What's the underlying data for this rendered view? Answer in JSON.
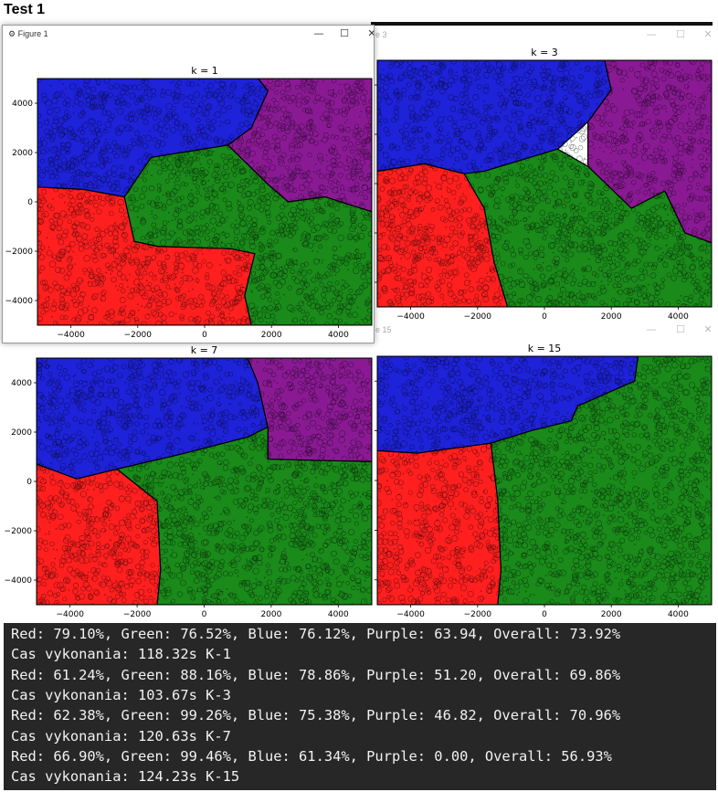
{
  "heading": "Test 1",
  "windows": [
    {
      "title": "Figure 1",
      "controls": [
        "—",
        "☐",
        "✕"
      ],
      "plot_title": "k = 1"
    },
    {
      "title": "e 3",
      "controls": [
        "—",
        "☐",
        "✕"
      ],
      "plot_title": "k = 3"
    },
    {
      "title": "",
      "controls": [],
      "plot_title": "k = 7"
    },
    {
      "title": "e 15",
      "controls": [
        "—",
        "☐",
        "✕"
      ],
      "plot_title": "k = 15"
    }
  ],
  "toolbar": {
    "icons": [
      "home-icon",
      "back-arrow-icon",
      "forward-arrow-icon",
      "pan-move-icon",
      "zoom-magnifier-icon",
      "configure-subplots-icon",
      "save-floppy-icon"
    ],
    "glyphs": [
      "⌂",
      "←",
      "→",
      "✛",
      "⌕",
      "☰",
      "▣"
    ]
  },
  "chart_data": {
    "type": "scatter",
    "xticks": [
      "−4000",
      "−2000",
      "0",
      "2000",
      "4000"
    ],
    "yticks": [
      "4000",
      "2000",
      "0",
      "−2000",
      "−4000"
    ],
    "xlim": [
      -5000,
      5000
    ],
    "ylim": [
      -5000,
      5000
    ],
    "class_colors": {
      "red": "#ff1f1f",
      "green": "#1a8a1a",
      "blue": "#1e22d8",
      "purple": "#8a1a94"
    },
    "panels": [
      {
        "title": "k = 1",
        "regions": [
          {
            "color": "blue",
            "polygon": [
              [
                -5000,
                5000
              ],
              [
                1600,
                5000
              ],
              [
                1900,
                4500
              ],
              [
                1400,
                3000
              ],
              [
                700,
                2300
              ],
              [
                -1600,
                1800
              ],
              [
                -2400,
                200
              ],
              [
                -3600,
                500
              ],
              [
                -5000,
                600
              ]
            ]
          },
          {
            "color": "purple",
            "polygon": [
              [
                1600,
                5000
              ],
              [
                5000,
                5000
              ],
              [
                5000,
                -400
              ],
              [
                3600,
                200
              ],
              [
                2500,
                0
              ],
              [
                1900,
                700
              ],
              [
                700,
                2300
              ],
              [
                1400,
                3000
              ],
              [
                1900,
                4500
              ]
            ]
          },
          {
            "color": "red",
            "polygon": [
              [
                -5000,
                600
              ],
              [
                -3600,
                500
              ],
              [
                -2400,
                200
              ],
              [
                -2100,
                -1600
              ],
              [
                -1400,
                -1800
              ],
              [
                800,
                -1900
              ],
              [
                1500,
                -2100
              ],
              [
                1200,
                -3800
              ],
              [
                1400,
                -5000
              ],
              [
                -5000,
                -5000
              ]
            ]
          },
          {
            "color": "green",
            "polygon": [
              [
                -2400,
                200
              ],
              [
                -1600,
                1800
              ],
              [
                700,
                2300
              ],
              [
                1900,
                700
              ],
              [
                2500,
                0
              ],
              [
                3600,
                200
              ],
              [
                5000,
                -400
              ],
              [
                5000,
                -5000
              ],
              [
                1400,
                -5000
              ],
              [
                1200,
                -3800
              ],
              [
                1500,
                -2100
              ],
              [
                800,
                -1900
              ],
              [
                -1400,
                -1800
              ],
              [
                -2100,
                -1600
              ]
            ]
          }
        ]
      },
      {
        "title": "k = 3",
        "regions": [
          {
            "color": "blue",
            "polygon": [
              [
                -5000,
                5000
              ],
              [
                1800,
                5000
              ],
              [
                2000,
                3800
              ],
              [
                1300,
                2500
              ],
              [
                400,
                1400
              ],
              [
                -1800,
                500
              ],
              [
                -2400,
                400
              ],
              [
                -3600,
                800
              ],
              [
                -5000,
                500
              ]
            ]
          },
          {
            "color": "purple",
            "polygon": [
              [
                1800,
                5000
              ],
              [
                5000,
                5000
              ],
              [
                5000,
                -2400
              ],
              [
                4200,
                -2000
              ],
              [
                3600,
                -300
              ],
              [
                2600,
                -1000
              ],
              [
                1300,
                700
              ],
              [
                1300,
                2500
              ],
              [
                2000,
                3800
              ]
            ]
          },
          {
            "color": "red",
            "polygon": [
              [
                -5000,
                500
              ],
              [
                -3600,
                800
              ],
              [
                -2400,
                400
              ],
              [
                -1800,
                -1000
              ],
              [
                -1500,
                -3200
              ],
              [
                -1100,
                -5000
              ],
              [
                -5000,
                -5000
              ]
            ]
          },
          {
            "color": "green",
            "polygon": [
              [
                -2400,
                400
              ],
              [
                -1800,
                500
              ],
              [
                400,
                1400
              ],
              [
                1300,
                700
              ],
              [
                2600,
                -1000
              ],
              [
                3600,
                -300
              ],
              [
                4200,
                -2000
              ],
              [
                5000,
                -2400
              ],
              [
                5000,
                -5000
              ],
              [
                -1100,
                -5000
              ],
              [
                -1500,
                -3200
              ],
              [
                -1800,
                -1000
              ]
            ]
          }
        ]
      },
      {
        "title": "k = 7",
        "regions": [
          {
            "color": "blue",
            "polygon": [
              [
                -5000,
                5000
              ],
              [
                1300,
                5000
              ],
              [
                1600,
                4000
              ],
              [
                1900,
                2200
              ],
              [
                1300,
                1800
              ],
              [
                -700,
                1100
              ],
              [
                -2600,
                500
              ],
              [
                -3800,
                100
              ],
              [
                -5000,
                700
              ]
            ]
          },
          {
            "color": "purple",
            "polygon": [
              [
                1300,
                5000
              ],
              [
                5000,
                5000
              ],
              [
                5000,
                800
              ],
              [
                1900,
                900
              ],
              [
                1900,
                2200
              ],
              [
                1600,
                4000
              ]
            ]
          },
          {
            "color": "red",
            "polygon": [
              [
                -5000,
                700
              ],
              [
                -3800,
                100
              ],
              [
                -2600,
                500
              ],
              [
                -1400,
                -800
              ],
              [
                -1300,
                -3600
              ],
              [
                -1400,
                -5000
              ],
              [
                -5000,
                -5000
              ]
            ]
          },
          {
            "color": "green",
            "polygon": [
              [
                -2600,
                500
              ],
              [
                -700,
                1100
              ],
              [
                1300,
                1800
              ],
              [
                1900,
                2200
              ],
              [
                1900,
                900
              ],
              [
                5000,
                800
              ],
              [
                5000,
                -5000
              ],
              [
                -1400,
                -5000
              ],
              [
                -1300,
                -3600
              ],
              [
                -1400,
                -800
              ]
            ]
          }
        ]
      },
      {
        "title": "k = 15",
        "regions": [
          {
            "color": "blue",
            "polygon": [
              [
                -5000,
                5000
              ],
              [
                2800,
                5000
              ],
              [
                2700,
                4000
              ],
              [
                1000,
                3000
              ],
              [
                800,
                2400
              ],
              [
                -400,
                2000
              ],
              [
                -1600,
                1500
              ],
              [
                -3800,
                1100
              ],
              [
                -5000,
                1200
              ]
            ]
          },
          {
            "color": "green",
            "polygon": [
              [
                2800,
                5000
              ],
              [
                5000,
                5000
              ],
              [
                5000,
                -5000
              ],
              [
                -1400,
                -5000
              ],
              [
                -1300,
                -3600
              ],
              [
                -1400,
                -800
              ],
              [
                -1600,
                1500
              ],
              [
                -400,
                2000
              ],
              [
                800,
                2400
              ],
              [
                1000,
                3000
              ],
              [
                2700,
                4000
              ]
            ]
          },
          {
            "color": "red",
            "polygon": [
              [
                -5000,
                1200
              ],
              [
                -3800,
                1100
              ],
              [
                -1600,
                1500
              ],
              [
                -1400,
                -800
              ],
              [
                -1300,
                -3600
              ],
              [
                -1400,
                -5000
              ],
              [
                -5000,
                -5000
              ]
            ]
          }
        ]
      }
    ]
  },
  "console": {
    "lines": [
      "Red: 79.10%, Green: 76.52%, Blue: 76.12%, Purple: 63.94, Overall: 73.92%",
      "Cas vykonania: 118.32s K-1",
      "Red: 61.24%, Green: 88.16%, Blue: 78.86%, Purple: 51.20, Overall: 69.86%",
      "Cas vykonania: 103.67s K-3",
      "Red: 62.38%, Green: 99.26%, Blue: 75.38%, Purple: 46.82, Overall: 70.96%",
      "Cas vykonania: 120.63s K-7",
      "Red: 66.90%, Green: 99.46%, Blue: 61.34%, Purple: 0.00, Overall: 56.93%",
      "Cas vykonania: 124.23s K-15"
    ]
  }
}
